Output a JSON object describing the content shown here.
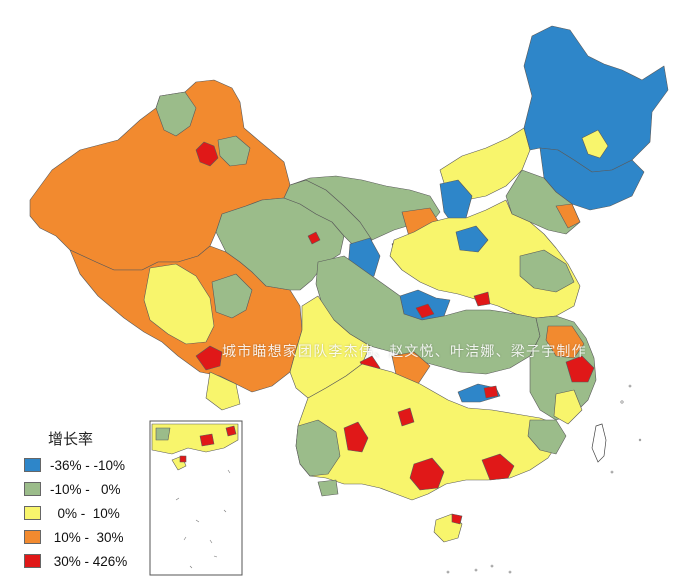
{
  "legend": {
    "title": "增长率",
    "items": [
      {
        "label": "-36% - -10%",
        "color": "#2e86c9"
      },
      {
        "label": "-10% -   0%",
        "color": "#9bbc8a"
      },
      {
        "label": "  0% -  10%",
        "color": "#f8f56c"
      },
      {
        "label": " 10% -  30%",
        "color": "#f28a2f"
      },
      {
        "label": " 30% - 426%",
        "color": "#e01818"
      }
    ]
  },
  "watermark": "城市瞄想家团队李杰伟、赵文悦、叶洁娜、梁子宇制作",
  "colors": {
    "decline_strong": "#2e86c9",
    "decline_mild": "#9bbc8a",
    "growth_low": "#f8f56c",
    "growth_mid": "#f28a2f",
    "growth_high": "#e01818"
  }
}
